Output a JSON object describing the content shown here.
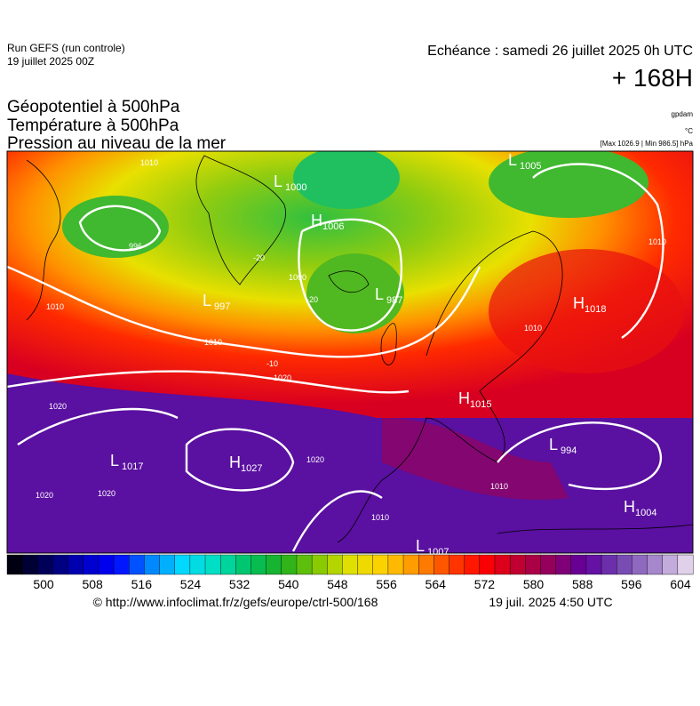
{
  "header": {
    "run": "Run GEFS (run controle)",
    "date": "19 juillet 2025 00Z",
    "echeance": "Echéance : samedi 26 juillet 2025 0h UTC",
    "lead": "+ 168H"
  },
  "titles": [
    "Géopotentiel à 500hPa",
    "Température à 500hPa",
    "Pression au niveau de la mer"
  ],
  "units": [
    "gpdam",
    "°C",
    "[Max 1026.9 | Min 986.5] hPa"
  ],
  "pressure_centers": [
    {
      "letter": "L",
      "value": "1005"
    },
    {
      "letter": "L",
      "value": "1000"
    },
    {
      "letter": "H",
      "value": "1006"
    },
    {
      "letter": "L",
      "value": "997"
    },
    {
      "letter": "L",
      "value": "987"
    },
    {
      "letter": "H",
      "value": "1018"
    },
    {
      "letter": "H",
      "value": "1015"
    },
    {
      "letter": "L",
      "value": "994"
    },
    {
      "letter": "L",
      "value": "1017"
    },
    {
      "letter": "H",
      "value": "1027"
    },
    {
      "letter": "H",
      "value": "1004"
    },
    {
      "letter": "L",
      "value": "1007"
    }
  ],
  "contour_labels": [
    "1010",
    "996",
    "1010",
    "1010",
    "1020",
    "1020",
    "1020",
    "1020",
    "1020",
    "1010",
    "1000",
    "1010",
    "1010",
    "1010",
    "-20",
    "-20",
    "-10"
  ],
  "colorbar": {
    "ticks": [
      500,
      508,
      516,
      524,
      532,
      540,
      548,
      556,
      564,
      572,
      580,
      588,
      596,
      604
    ]
  },
  "footer": {
    "url": "© http://www.infoclimat.fr/z/gefs/europe/ctrl-500/168",
    "issued": "19 juil. 2025  4:50 UTC"
  }
}
